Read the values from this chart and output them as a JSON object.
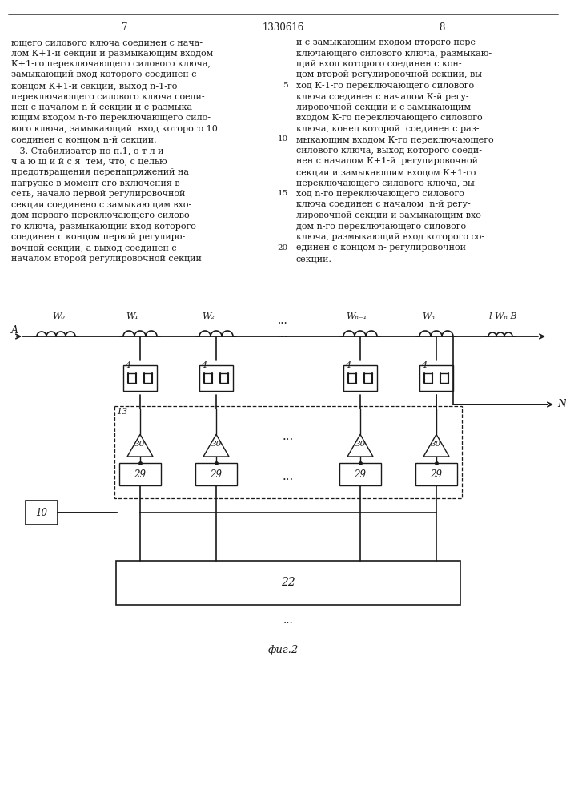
{
  "bg_color": "#ffffff",
  "line_color": "#1a1a1a",
  "fig_width": 7.07,
  "fig_height": 10.0,
  "dpi": 100,
  "header_title": "1330616",
  "page_left": "7",
  "page_right": "8",
  "fig_caption": "фиг.2",
  "text_left": [
    "ющего силового ключа соединен с нача-",
    "лом К+1-й секции и размыкающим входом",
    "К+1-го переключающего силового ключа,",
    "замыкающий вход которого соединен с",
    "концом К+1-й секции, выход n-1-го",
    "переключающего силового ключа соеди-",
    "нен с началом n-й секции и с размыка-",
    "ющим входом n-го переключающего сило-",
    "вого ключа, замыкающий  вход которого 10",
    "соединен с концом n-й секции.",
    "   3. Стабилизатор по п.1, о т л и -",
    "ч а ю щ и й с я  тем, что, с целью",
    "предотвращения перенапряжений на",
    "нагрузке в момент его включения в",
    "сеть, начало первой регулировочной",
    "секции соединено с замыкающим вхо-",
    "дом первого переключающего силово-",
    "го ключа, размыкающий вход которого",
    "соединен с концом первой регулиро-",
    "вочной секции, а выход соединен с",
    "началом второй регулировочной секции"
  ],
  "text_right": [
    "и с замыкающим входом второго пере-",
    "ключающего силового ключа, размыкаю-",
    "щий вход которого соединен с кон-",
    "цом второй регулировочной секции, вы-",
    "ход К-1-го переключающего силового",
    "ключа соединен с началом К-й регу-",
    "лировочной секции и с замыкающим",
    "входом К-го переключающего силового",
    "ключа, конец которой  соединен с раз-",
    "мыкающим входом К-го переключающего",
    "силового ключа, выход которого соеди-",
    "нен с началом К+1-й  регулировочной",
    "секции и замыкающим входом К+1-го",
    "переключающего силового ключа, вы-",
    "ход n-го переключающего силового",
    "ключа соединен с началом  n-й регу-",
    "лировочной секции и замыкающим вхо-",
    "дом n-го переключающего силового",
    "ключа, размыкающий вход которого со-",
    "единен с концом n- регулировочной",
    "секции."
  ],
  "line_numbers": {
    "4": "5",
    "9": "10",
    "14": "15",
    "19": "20"
  }
}
